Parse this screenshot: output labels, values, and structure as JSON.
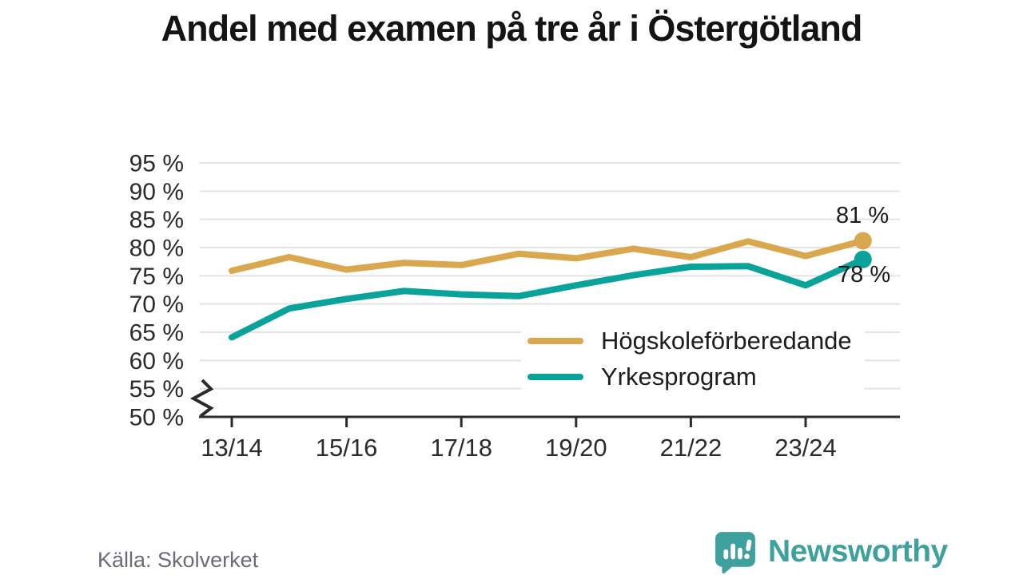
{
  "title": "Andel med examen på tre år i Östergötland",
  "chart_data": {
    "type": "line",
    "title": "Andel med examen på tre år i Östergötland",
    "categories": [
      "13/14",
      "14/15",
      "15/16",
      "16/17",
      "17/18",
      "18/19",
      "19/20",
      "20/21",
      "21/22",
      "22/23",
      "23/24",
      "24/25"
    ],
    "x_tick_labels": [
      "13/14",
      "15/16",
      "17/18",
      "19/20",
      "21/22",
      "23/24"
    ],
    "y_tick_values": [
      95,
      90,
      85,
      80,
      75,
      70,
      65,
      60,
      55,
      50
    ],
    "y_tick_labels": [
      "95 %",
      "90 %",
      "85 %",
      "80 %",
      "75 %",
      "70 %",
      "65 %",
      "60 %",
      "55 %",
      "50 %"
    ],
    "ylim": [
      50,
      95
    ],
    "axis_break": true,
    "grid": "horizontal",
    "legend_position": "inside-right",
    "series": [
      {
        "name": "Högskoleförberedande",
        "color": "#D9A84E",
        "values": [
          75.9,
          78.3,
          76.1,
          77.3,
          76.9,
          78.9,
          78.1,
          79.8,
          78.3,
          81.1,
          78.5,
          81.2
        ],
        "end_label": "81 %"
      },
      {
        "name": "Yrkesprogram",
        "color": "#0AA39A",
        "values": [
          64.1,
          69.2,
          70.9,
          72.3,
          71.7,
          71.4,
          73.3,
          75.1,
          76.6,
          76.7,
          73.3,
          77.9
        ],
        "end_label": "78 %"
      }
    ]
  },
  "source": "Källa: Skolverket",
  "brand": {
    "name": "Newsworthy",
    "color": "#3FA19D",
    "icon": "newsworthy-speech-bubble-chart-icon"
  },
  "style": {
    "grid_color": "#E3E3E3",
    "axis_color": "#2B2B2B",
    "tick_label_color": "#2B2B2B"
  }
}
